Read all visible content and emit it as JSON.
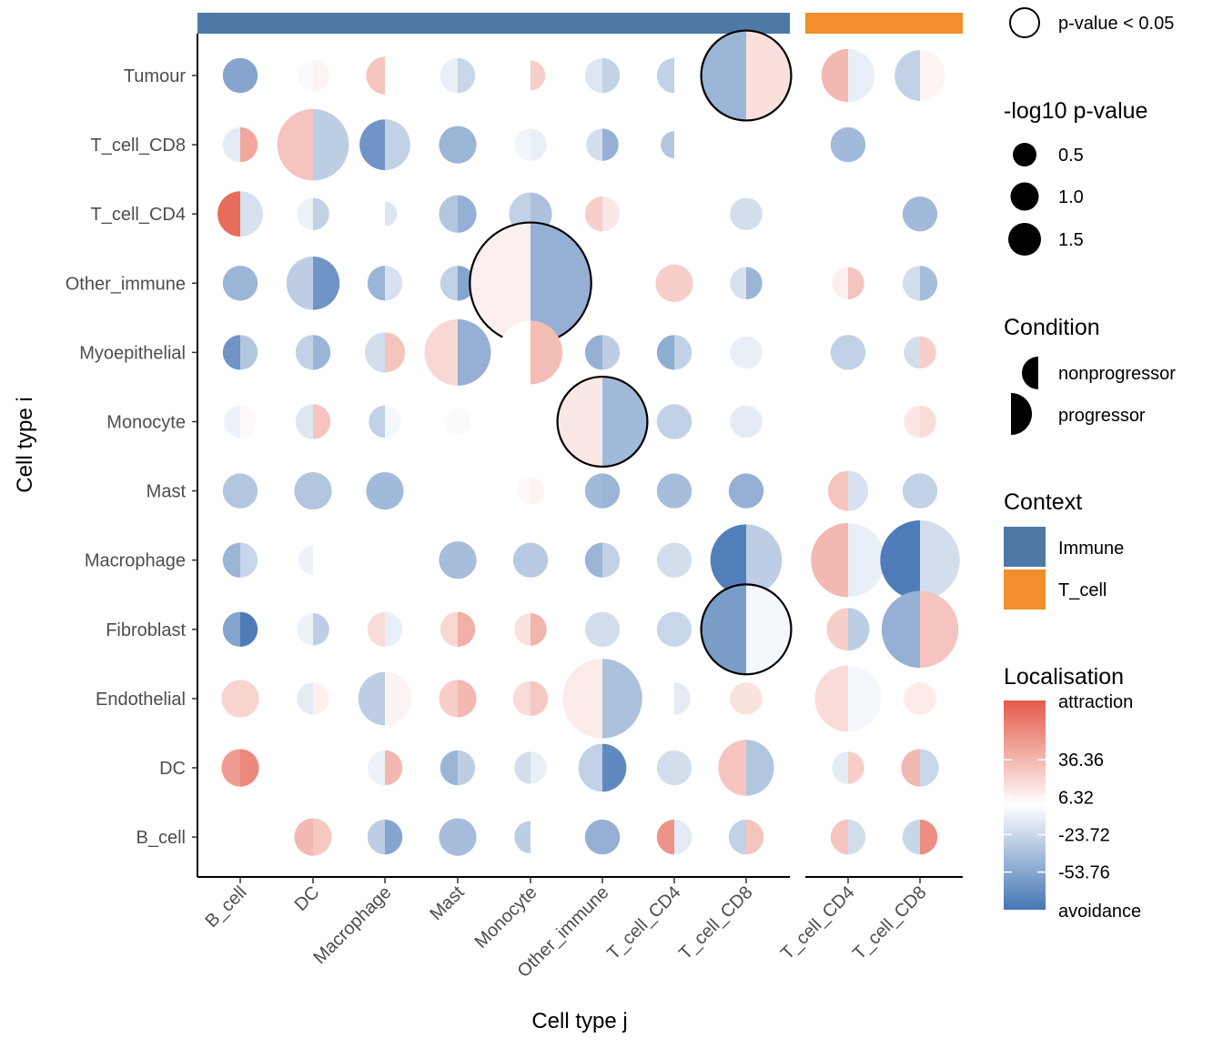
{
  "chart_data": {
    "type": "dot-matrix",
    "xlabel": "Cell type j",
    "ylabel": "Cell type i",
    "rows": [
      "Tumour",
      "T_cell_CD8",
      "T_cell_CD4",
      "Other_immune",
      "Myoepithelial",
      "Monocyte",
      "Mast",
      "Macrophage",
      "Fibroblast",
      "Endothelial",
      "DC",
      "B_cell"
    ],
    "facets": [
      {
        "name": "Immune",
        "color": "#4e79a7",
        "columns": [
          "B_cell",
          "DC",
          "Macrophage",
          "Mast",
          "Monocyte",
          "Other_immune",
          "T_cell_CD4",
          "T_cell_CD8"
        ]
      },
      {
        "name": "T_cell",
        "color": "#f28e2b",
        "columns": [
          "T_cell_CD4",
          "T_cell_CD8"
        ]
      }
    ],
    "points_fields": [
      "row",
      "facet",
      "column",
      "nonprogressor_localisation",
      "progressor_localisation",
      "neg_log10_pvalue",
      "significant"
    ],
    "points": [
      [
        "Tumour",
        0,
        "B_cell",
        -55,
        -55,
        0.55,
        false
      ],
      [
        "Tumour",
        0,
        "DC",
        -3,
        6,
        0.5,
        false
      ],
      [
        "Tumour",
        0,
        "Macrophage",
        30,
        0,
        0.6,
        false
      ],
      [
        "Tumour",
        0,
        "Mast",
        -10,
        -25,
        0.55,
        false
      ],
      [
        "Tumour",
        0,
        "Monocyte",
        0,
        25,
        0.45,
        false
      ],
      [
        "Tumour",
        0,
        "Other_immune",
        -15,
        -28,
        0.55,
        false
      ],
      [
        "Tumour",
        0,
        "T_cell_CD4",
        -28,
        0,
        0.55,
        false
      ],
      [
        "Tumour",
        0,
        "T_cell_CD8",
        -45,
        16,
        1.6,
        true
      ],
      [
        "Tumour",
        1,
        "T_cell_CD4",
        36,
        -10,
        0.9,
        false
      ],
      [
        "Tumour",
        1,
        "T_cell_CD8",
        -28,
        6,
        0.85,
        false
      ],
      [
        "T_cell_CD8",
        0,
        "B_cell",
        -12,
        45,
        0.55,
        false
      ],
      [
        "T_cell_CD8",
        0,
        "DC",
        30,
        -30,
        1.25,
        false
      ],
      [
        "T_cell_CD8",
        0,
        "Macrophage",
        -65,
        -28,
        0.85,
        false
      ],
      [
        "T_cell_CD8",
        0,
        "Mast",
        -45,
        -45,
        0.6,
        false
      ],
      [
        "T_cell_CD8",
        0,
        "Monocyte",
        -6,
        -10,
        0.5,
        false
      ],
      [
        "T_cell_CD8",
        0,
        "Other_immune",
        -20,
        -48,
        0.5,
        false
      ],
      [
        "T_cell_CD8",
        0,
        "T_cell_CD4",
        -35,
        0,
        0.4,
        false
      ],
      [
        "T_cell_CD8",
        1,
        "T_cell_CD4",
        -42,
        -42,
        0.55,
        false
      ],
      [
        "T_cell_CD4",
        0,
        "B_cell",
        75,
        -18,
        0.75,
        false
      ],
      [
        "T_cell_CD4",
        0,
        "DC",
        -8,
        -28,
        0.5,
        false
      ],
      [
        "T_cell_CD4",
        0,
        "Macrophage",
        0,
        -15,
        0.35,
        false
      ],
      [
        "T_cell_CD4",
        0,
        "Mast",
        -35,
        -48,
        0.6,
        false
      ],
      [
        "T_cell_CD4",
        0,
        "Monocyte",
        -28,
        -38,
        0.7,
        false
      ],
      [
        "T_cell_CD4",
        0,
        "Other_immune",
        25,
        12,
        0.55,
        false
      ],
      [
        "T_cell_CD4",
        0,
        "T_cell_CD8",
        -20,
        -20,
        0.5,
        false
      ],
      [
        "T_cell_CD4",
        1,
        "T_cell_CD8",
        -42,
        -42,
        0.55,
        false
      ],
      [
        "Other_immune",
        0,
        "B_cell",
        -45,
        -45,
        0.55,
        false
      ],
      [
        "Other_immune",
        0,
        "DC",
        -30,
        -65,
        0.9,
        false
      ],
      [
        "Other_immune",
        0,
        "Macrophage",
        -45,
        -18,
        0.55,
        false
      ],
      [
        "Other_immune",
        0,
        "Mast",
        -28,
        -55,
        0.55,
        false
      ],
      [
        "Other_immune",
        0,
        "Monocyte",
        8,
        -48,
        2.2,
        true
      ],
      [
        "Other_immune",
        0,
        "T_cell_CD4",
        25,
        25,
        0.6,
        false
      ],
      [
        "Other_immune",
        0,
        "T_cell_CD8",
        -18,
        -45,
        0.5,
        false
      ],
      [
        "Other_immune",
        1,
        "T_cell_CD4",
        8,
        30,
        0.5,
        false
      ],
      [
        "Other_immune",
        1,
        "T_cell_CD8",
        -20,
        -40,
        0.55,
        false
      ],
      [
        "Myoepithelial",
        0,
        "B_cell",
        -65,
        -35,
        0.55,
        false
      ],
      [
        "Myoepithelial",
        0,
        "DC",
        -28,
        -45,
        0.55,
        false
      ],
      [
        "Myoepithelial",
        0,
        "Macrophage",
        -20,
        30,
        0.65,
        false
      ],
      [
        "Myoepithelial",
        0,
        "Mast",
        20,
        -48,
        1.15,
        false
      ],
      [
        "Myoepithelial",
        0,
        "Monocyte",
        0,
        33,
        1.1,
        false
      ],
      [
        "Myoepithelial",
        0,
        "Other_immune",
        -48,
        -30,
        0.55,
        false
      ],
      [
        "Myoepithelial",
        0,
        "T_cell_CD4",
        -50,
        -28,
        0.55,
        false
      ],
      [
        "Myoepithelial",
        0,
        "T_cell_CD8",
        -10,
        -10,
        0.5,
        false
      ],
      [
        "Myoepithelial",
        1,
        "T_cell_CD4",
        -28,
        -28,
        0.55,
        false
      ],
      [
        "Myoepithelial",
        1,
        "T_cell_CD8",
        -20,
        25,
        0.5,
        false
      ],
      [
        "Monocyte",
        0,
        "B_cell",
        -8,
        3,
        0.5,
        false
      ],
      [
        "Monocyte",
        0,
        "DC",
        -15,
        30,
        0.55,
        false
      ],
      [
        "Monocyte",
        0,
        "Macrophage",
        -28,
        -5,
        0.5,
        false
      ],
      [
        "Monocyte",
        0,
        "Mast",
        -3,
        -3,
        0.4,
        false
      ],
      [
        "Monocyte",
        0,
        "Other_immune",
        12,
        -42,
        1.6,
        true
      ],
      [
        "Monocyte",
        0,
        "T_cell_CD4",
        -28,
        -28,
        0.55,
        false
      ],
      [
        "Monocyte",
        0,
        "T_cell_CD8",
        -12,
        -12,
        0.5,
        false
      ],
      [
        "Monocyte",
        1,
        "T_cell_CD4",
        0,
        0,
        0.35,
        false
      ],
      [
        "Monocyte",
        1,
        "T_cell_CD8",
        12,
        18,
        0.5,
        false
      ],
      [
        "Mast",
        0,
        "B_cell",
        -35,
        -35,
        0.55,
        false
      ],
      [
        "Mast",
        0,
        "DC",
        -35,
        -35,
        0.6,
        false
      ],
      [
        "Mast",
        0,
        "Macrophage",
        -42,
        -42,
        0.6,
        false
      ],
      [
        "Mast",
        0,
        "Monocyte",
        3,
        6,
        0.4,
        false
      ],
      [
        "Mast",
        0,
        "Other_immune",
        -42,
        -45,
        0.55,
        false
      ],
      [
        "Mast",
        0,
        "T_cell_CD4",
        -40,
        -40,
        0.55,
        false
      ],
      [
        "Mast",
        0,
        "T_cell_CD8",
        -48,
        -48,
        0.55,
        false
      ],
      [
        "Mast",
        1,
        "T_cell_CD4",
        30,
        -18,
        0.65,
        false
      ],
      [
        "Mast",
        1,
        "T_cell_CD8",
        -28,
        -28,
        0.55,
        false
      ],
      [
        "Macrophage",
        0,
        "B_cell",
        -45,
        -25,
        0.55,
        false
      ],
      [
        "Macrophage",
        0,
        "DC",
        -8,
        0,
        0.45,
        false
      ],
      [
        "Macrophage",
        0,
        "Mast",
        -40,
        -40,
        0.6,
        false
      ],
      [
        "Macrophage",
        0,
        "Monocyte",
        -32,
        -32,
        0.55,
        false
      ],
      [
        "Macrophage",
        0,
        "Other_immune",
        -45,
        -28,
        0.55,
        false
      ],
      [
        "Macrophage",
        0,
        "T_cell_CD4",
        -20,
        -20,
        0.55,
        false
      ],
      [
        "Macrophage",
        0,
        "T_cell_CD8",
        -78,
        -30,
        1.25,
        false
      ],
      [
        "Macrophage",
        1,
        "T_cell_CD4",
        36,
        -10,
        1.3,
        false
      ],
      [
        "Macrophage",
        1,
        "T_cell_CD8",
        -80,
        -20,
        1.4,
        false
      ],
      [
        "Fibroblast",
        0,
        "B_cell",
        -55,
        -80,
        0.55,
        false
      ],
      [
        "Fibroblast",
        0,
        "DC",
        -8,
        -30,
        0.5,
        false
      ],
      [
        "Fibroblast",
        0,
        "Macrophage",
        18,
        -10,
        0.55,
        false
      ],
      [
        "Fibroblast",
        0,
        "Mast",
        20,
        40,
        0.55,
        false
      ],
      [
        "Fibroblast",
        0,
        "Monocyte",
        15,
        38,
        0.5,
        false
      ],
      [
        "Fibroblast",
        0,
        "Other_immune",
        -20,
        -20,
        0.55,
        false
      ],
      [
        "Fibroblast",
        0,
        "T_cell_CD4",
        -25,
        -25,
        0.55,
        false
      ],
      [
        "Fibroblast",
        0,
        "T_cell_CD8",
        -60,
        -5,
        1.6,
        true
      ],
      [
        "Fibroblast",
        1,
        "T_cell_CD4",
        25,
        -30,
        0.7,
        false
      ],
      [
        "Fibroblast",
        1,
        "T_cell_CD8",
        -48,
        30,
        1.35,
        false
      ],
      [
        "Endothelial",
        0,
        "B_cell",
        22,
        22,
        0.6,
        false
      ],
      [
        "Endothelial",
        0,
        "DC",
        -12,
        8,
        0.5,
        false
      ],
      [
        "Endothelial",
        0,
        "Macrophage",
        -30,
        6,
        0.9,
        false
      ],
      [
        "Endothelial",
        0,
        "Mast",
        25,
        36,
        0.6,
        false
      ],
      [
        "Endothelial",
        0,
        "Monocyte",
        18,
        28,
        0.55,
        false
      ],
      [
        "Endothelial",
        0,
        "Other_immune",
        10,
        -38,
        1.4,
        false
      ],
      [
        "Endothelial",
        0,
        "T_cell_CD4",
        0,
        -12,
        0.5,
        false
      ],
      [
        "Endothelial",
        0,
        "T_cell_CD8",
        15,
        15,
        0.5,
        false
      ],
      [
        "Endothelial",
        1,
        "T_cell_CD4",
        18,
        -5,
        1.15,
        false
      ],
      [
        "Endothelial",
        1,
        "T_cell_CD8",
        10,
        10,
        0.5,
        false
      ],
      [
        "DC",
        0,
        "B_cell",
        50,
        60,
        0.6,
        false
      ],
      [
        "DC",
        0,
        "Macrophage",
        -8,
        36,
        0.55,
        false
      ],
      [
        "DC",
        0,
        "Mast",
        -45,
        -30,
        0.55,
        false
      ],
      [
        "DC",
        0,
        "Monocyte",
        -20,
        -10,
        0.5,
        false
      ],
      [
        "DC",
        0,
        "Other_immune",
        -28,
        -72,
        0.8,
        false
      ],
      [
        "DC",
        0,
        "T_cell_CD4",
        -20,
        -20,
        0.55,
        false
      ],
      [
        "DC",
        0,
        "T_cell_CD8",
        30,
        -35,
        0.95,
        false
      ],
      [
        "DC",
        1,
        "T_cell_CD4",
        -12,
        25,
        0.5,
        false
      ],
      [
        "DC",
        1,
        "T_cell_CD8",
        36,
        -25,
        0.6,
        false
      ],
      [
        "B_cell",
        0,
        "DC",
        36,
        28,
        0.6,
        false
      ],
      [
        "B_cell",
        0,
        "Macrophage",
        -30,
        -55,
        0.55,
        false
      ],
      [
        "B_cell",
        0,
        "Mast",
        -40,
        -40,
        0.6,
        false
      ],
      [
        "B_cell",
        0,
        "Monocyte",
        -30,
        0,
        0.5,
        false
      ],
      [
        "B_cell",
        0,
        "Other_immune",
        -48,
        -48,
        0.55,
        false
      ],
      [
        "B_cell",
        0,
        "T_cell_CD4",
        55,
        -12,
        0.55,
        false
      ],
      [
        "B_cell",
        0,
        "T_cell_CD8",
        -28,
        30,
        0.55,
        false
      ],
      [
        "B_cell",
        1,
        "T_cell_CD4",
        30,
        -20,
        0.55,
        false
      ],
      [
        "B_cell",
        1,
        "T_cell_CD8",
        -25,
        58,
        0.55,
        false
      ]
    ]
  },
  "legend": {
    "pvalue": {
      "label": "p-value < 0.05"
    },
    "size": {
      "title": "-log10 p-value",
      "entries": [
        "0.5",
        "1.0",
        "1.5"
      ],
      "values": [
        0.5,
        1.0,
        1.5
      ]
    },
    "condition": {
      "title": "Condition",
      "entries": [
        "nonprogressor",
        "progressor"
      ]
    },
    "context": {
      "title": "Context",
      "entries": [
        {
          "label": "Immune",
          "color": "#4e79a7"
        },
        {
          "label": "T_cell",
          "color": "#f28e2b"
        }
      ]
    },
    "localisation": {
      "title": "Localisation",
      "top_label": "attraction",
      "bottom_label": "avoidance",
      "ticks": [
        "36.36",
        "6.32",
        "-23.72",
        "-53.76"
      ],
      "tick_values": [
        36.36,
        6.32,
        -23.72,
        -53.76
      ],
      "range": [
        -84,
        84
      ],
      "colors": {
        "low": "#4575b4",
        "mid": "#ffffff",
        "high": "#e45a48"
      }
    }
  }
}
